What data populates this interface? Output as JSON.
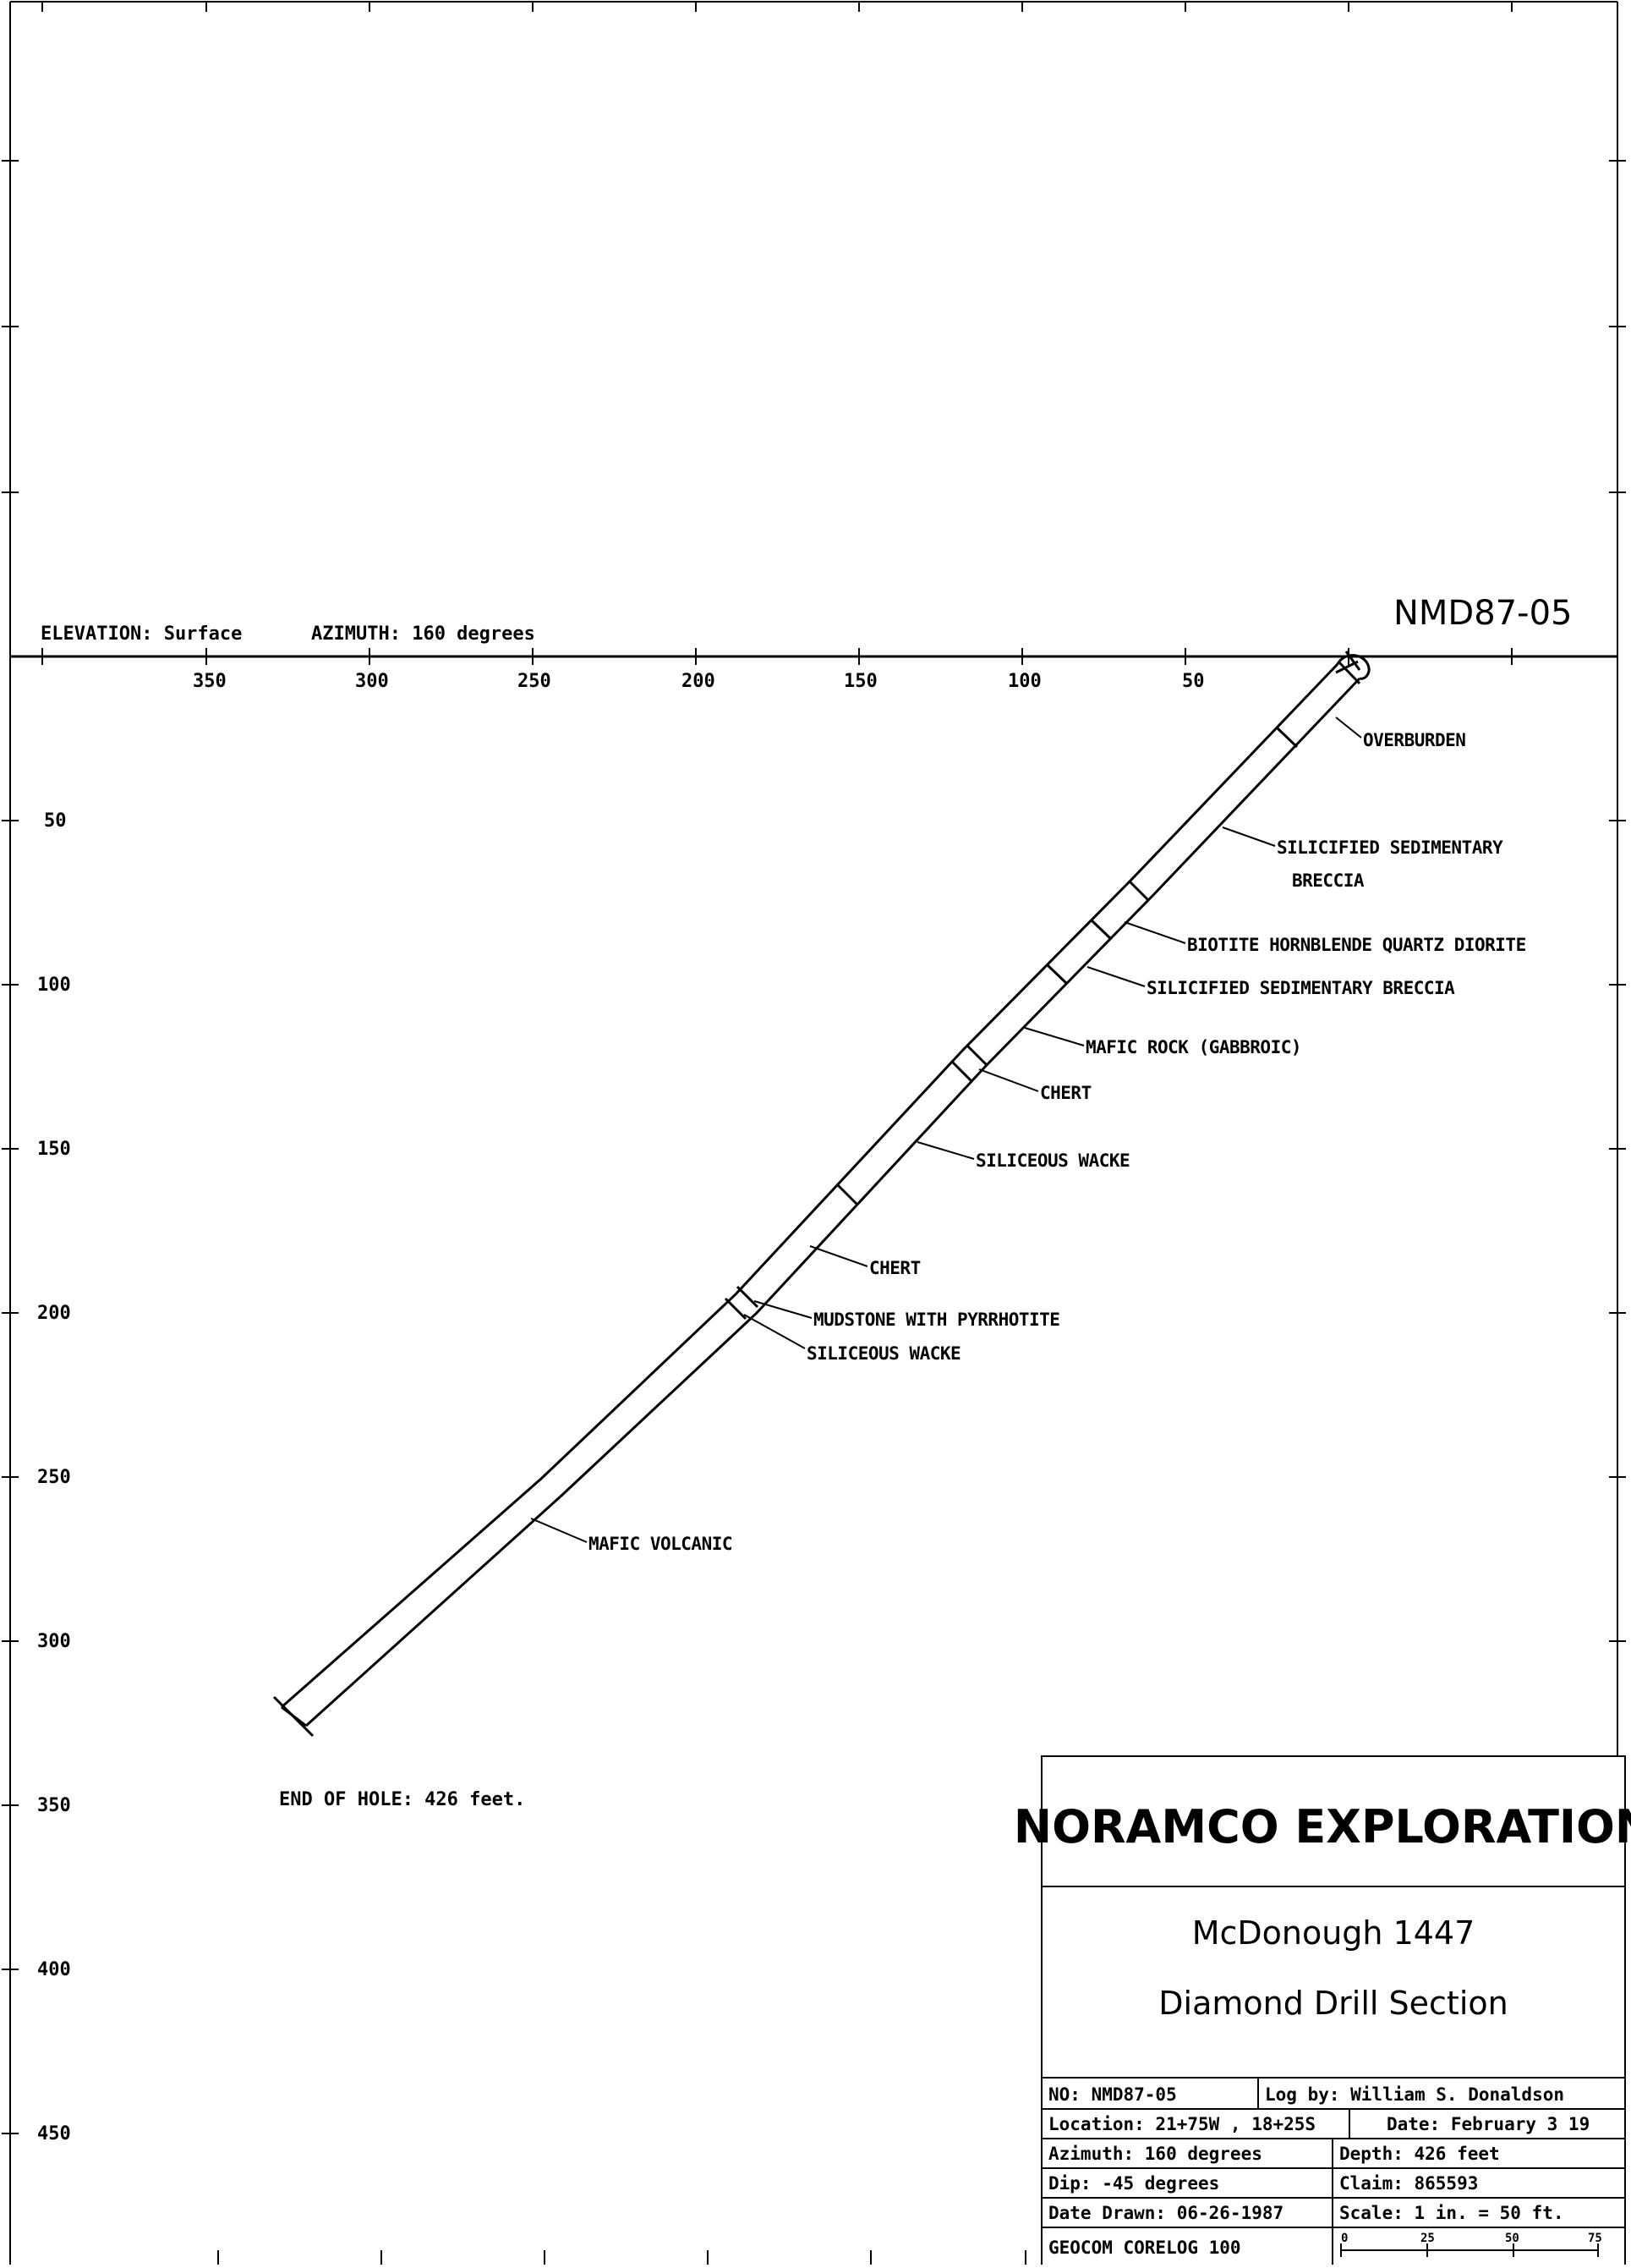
{
  "header": {
    "elevation": "ELEVATION: Surface",
    "azimuth": "AZIMUTH: 160 degrees",
    "hole_id": "NMD87-05"
  },
  "x_axis_labels": [
    "350",
    "300",
    "250",
    "200",
    "150",
    "100",
    "50"
  ],
  "y_axis_labels": [
    "50",
    "100",
    "150",
    "200",
    "250",
    "300",
    "350",
    "400",
    "450"
  ],
  "lithology_labels": [
    {
      "id": "overburden",
      "lines": [
        "OVERBURDEN"
      ]
    },
    {
      "id": "silicified-breccia-1",
      "lines": [
        "SILICIFIED SEDIMENTARY",
        "BRECCIA"
      ]
    },
    {
      "id": "quartz-diorite",
      "lines": [
        "BIOTITE HORNBLENDE QUARTZ DIORITE"
      ]
    },
    {
      "id": "silicified-breccia-2",
      "lines": [
        "SILICIFIED SEDIMENTARY BRECCIA"
      ]
    },
    {
      "id": "mafic-rock",
      "lines": [
        "MAFIC ROCK (GABBROIC)"
      ]
    },
    {
      "id": "chert-1",
      "lines": [
        "CHERT"
      ]
    },
    {
      "id": "siliceous-wacke-1",
      "lines": [
        "SILICEOUS WACKE"
      ]
    },
    {
      "id": "chert-2",
      "lines": [
        "CHERT"
      ]
    },
    {
      "id": "mudstone",
      "lines": [
        "MUDSTONE WITH PYRRHOTITE"
      ]
    },
    {
      "id": "siliceous-wacke-2",
      "lines": [
        "SILICEOUS WACKE"
      ]
    },
    {
      "id": "mafic-volcanic",
      "lines": [
        "MAFIC VOLCANIC"
      ]
    }
  ],
  "end_of_hole": "END OF HOLE:  426 feet.",
  "title_block": {
    "company": "NORAMCO EXPLORATION",
    "project": "McDonough 1447",
    "section_title": "Diamond Drill Section",
    "no": "NO: NMD87-05",
    "log_by": "Log by: William S. Donaldson",
    "location": "Location: 21+75W , 18+25S",
    "date": "Date: February 3 19",
    "azimuth": "Azimuth: 160 degrees",
    "depth": "Depth: 426 feet",
    "dip": "Dip: -45 degrees",
    "claim": "Claim: 865593",
    "date_drawn": "Date Drawn: 06-26-1987",
    "scale": "Scale: 1 in. = 50 ft.",
    "software": "GEOCOM CORELOG 100",
    "scale_bar": [
      "0",
      "25",
      "50",
      "75"
    ]
  }
}
